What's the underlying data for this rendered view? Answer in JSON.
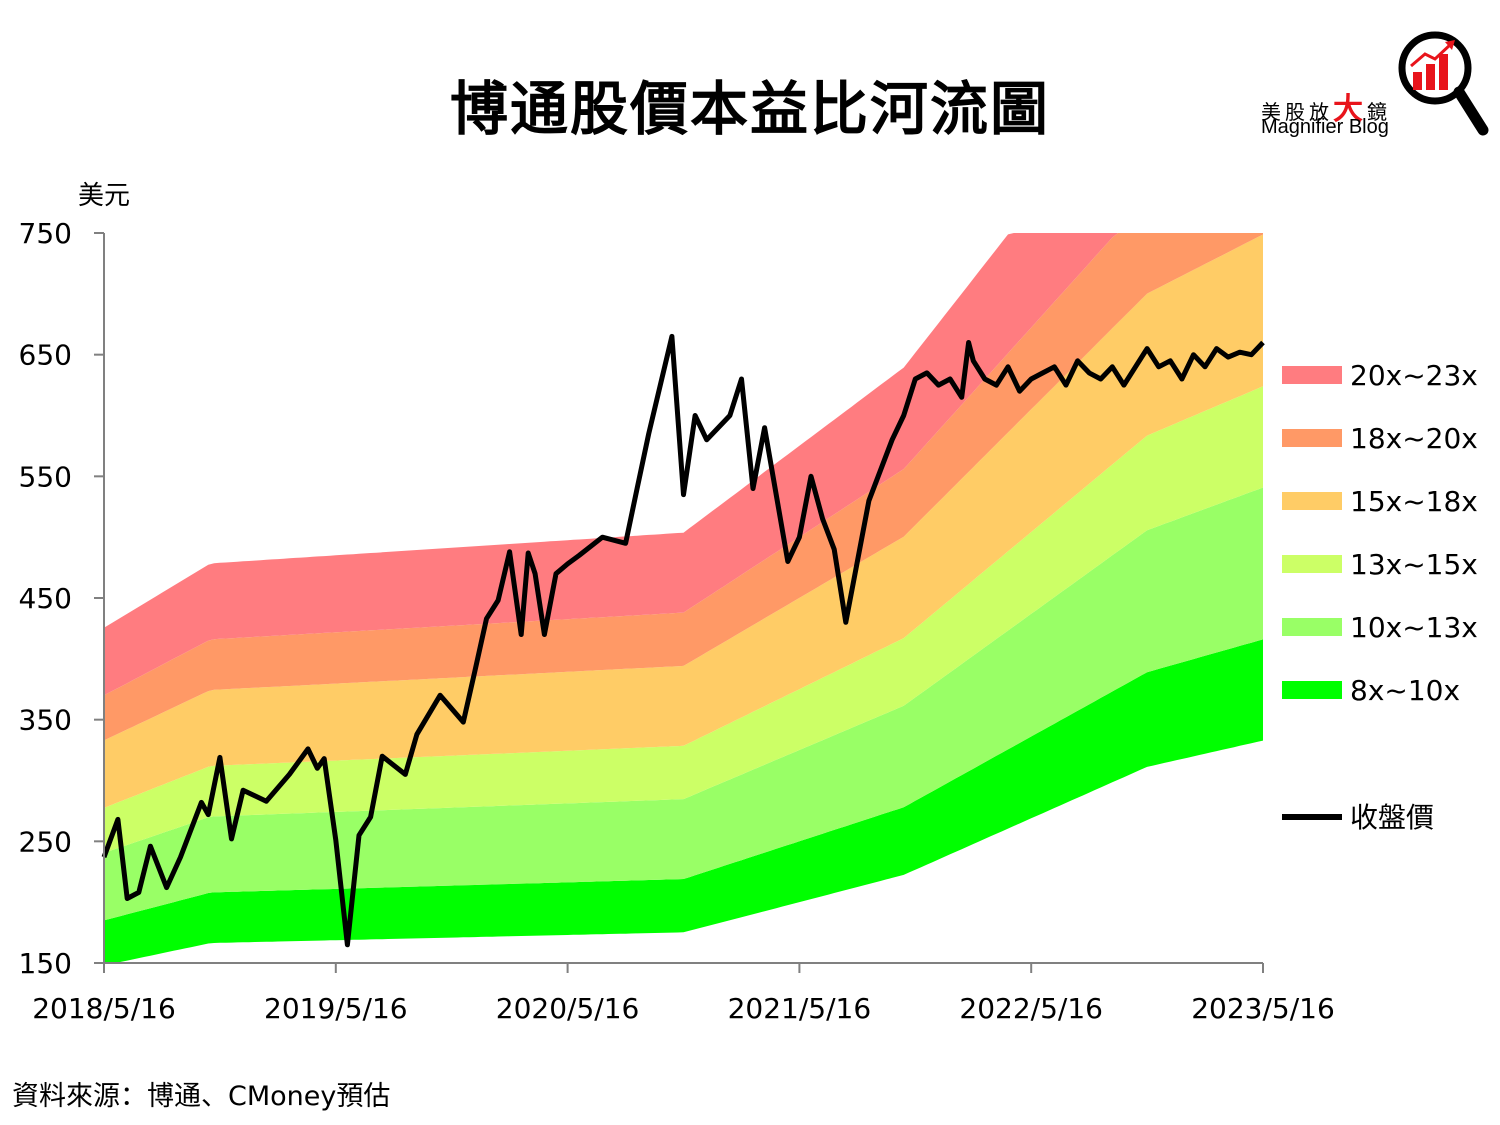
{
  "title": "博通股價本益比河流圖",
  "logo": {
    "zh_pre": "美股放",
    "zh_big": "大",
    "zh_post": "鏡",
    "en": "Magnifier Blog"
  },
  "source": "資料來源：博通、CMoney預估",
  "chart_data": {
    "type": "area",
    "ylabel": "美元",
    "ylim": [
      150,
      750
    ],
    "yticks": [
      150,
      250,
      350,
      450,
      550,
      650,
      750
    ],
    "xticks": [
      "2018/5/16",
      "2019/5/16",
      "2020/5/16",
      "2021/5/16",
      "2022/5/16",
      "2023/5/16"
    ],
    "xlim": [
      0,
      5
    ],
    "eps_knots": {
      "x": [
        0,
        0.46,
        2.5,
        3.45,
        4.5,
        5.0
      ],
      "eps": [
        18.5,
        20.8,
        21.9,
        27.8,
        38.9,
        41.6
      ]
    },
    "bands": [
      {
        "name": "8x~10x",
        "lower": 8,
        "upper": 10,
        "color": "#00ff00"
      },
      {
        "name": "10x~13x",
        "lower": 10,
        "upper": 13,
        "color": "#99ff66"
      },
      {
        "name": "13x~15x",
        "lower": 13,
        "upper": 15,
        "color": "#ccff66"
      },
      {
        "name": "15x~18x",
        "lower": 15,
        "upper": 18,
        "color": "#ffcc66"
      },
      {
        "name": "18x~20x",
        "lower": 18,
        "upper": 20,
        "color": "#ff9966"
      },
      {
        "name": "20x~23x",
        "lower": 20,
        "upper": 23,
        "color": "#ff7c80"
      }
    ],
    "price_series": {
      "name": "收盤價",
      "color": "#000000",
      "x": [
        0,
        0.06,
        0.1,
        0.15,
        0.2,
        0.27,
        0.33,
        0.42,
        0.45,
        0.5,
        0.55,
        0.6,
        0.7,
        0.8,
        0.88,
        0.92,
        0.95,
        1.0,
        1.05,
        1.1,
        1.15,
        1.2,
        1.3,
        1.35,
        1.45,
        1.55,
        1.6,
        1.65,
        1.7,
        1.75,
        1.8,
        1.83,
        1.86,
        1.9,
        1.95,
        2.0,
        2.05,
        2.15,
        2.25,
        2.3,
        2.35,
        2.45,
        2.5,
        2.55,
        2.6,
        2.7,
        2.75,
        2.8,
        2.85,
        2.95,
        3.0,
        3.05,
        3.1,
        3.15,
        3.2,
        3.3,
        3.4,
        3.45,
        3.5,
        3.55,
        3.6,
        3.65,
        3.7,
        3.73,
        3.75,
        3.8,
        3.85,
        3.9,
        3.95,
        4.0,
        4.05,
        4.1,
        4.15,
        4.2,
        4.25,
        4.3,
        4.35,
        4.4,
        4.45,
        4.5,
        4.55,
        4.6,
        4.65,
        4.7,
        4.75,
        4.8,
        4.85,
        4.9,
        4.95,
        5.0
      ],
      "y": [
        237,
        268,
        203,
        208,
        246,
        212,
        237,
        282,
        272,
        319,
        252,
        292,
        283,
        305,
        326,
        310,
        318,
        251,
        165,
        255,
        270,
        320,
        305,
        338,
        370,
        348,
        390,
        433,
        448,
        488,
        420,
        487,
        470,
        420,
        470,
        478,
        485,
        500,
        495,
        540,
        585,
        665,
        535,
        600,
        580,
        600,
        630,
        540,
        590,
        480,
        500,
        550,
        515,
        490,
        430,
        530,
        580,
        600,
        630,
        635,
        625,
        630,
        615,
        660,
        645,
        630,
        625,
        640,
        620,
        630,
        635,
        640,
        625,
        645,
        635,
        630,
        640,
        625,
        640,
        655,
        640,
        645,
        630,
        650,
        640,
        655,
        648,
        652,
        650,
        660
      ]
    }
  }
}
